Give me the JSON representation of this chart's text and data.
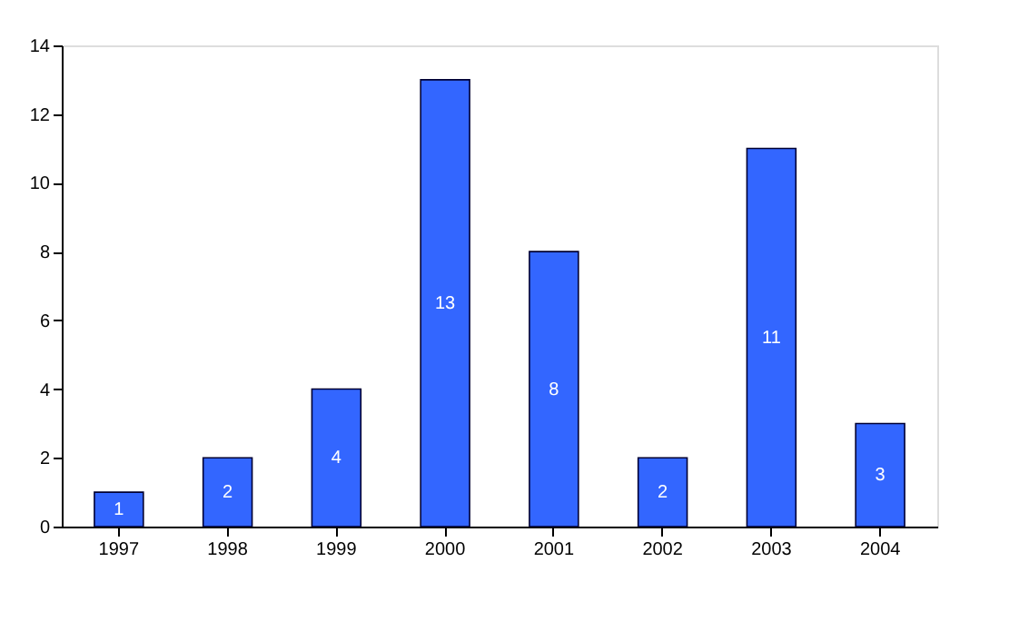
{
  "chart_data": {
    "type": "bar",
    "categories": [
      "1997",
      "1998",
      "1999",
      "2000",
      "2001",
      "2002",
      "2003",
      "2004"
    ],
    "values": [
      1,
      2,
      4,
      13,
      8,
      2,
      11,
      3
    ],
    "color": "#3366ff",
    "ylim": [
      0,
      14
    ],
    "yticks": [
      0,
      2,
      4,
      6,
      8,
      10,
      12,
      14
    ],
    "data_labels": true,
    "grid": false
  }
}
